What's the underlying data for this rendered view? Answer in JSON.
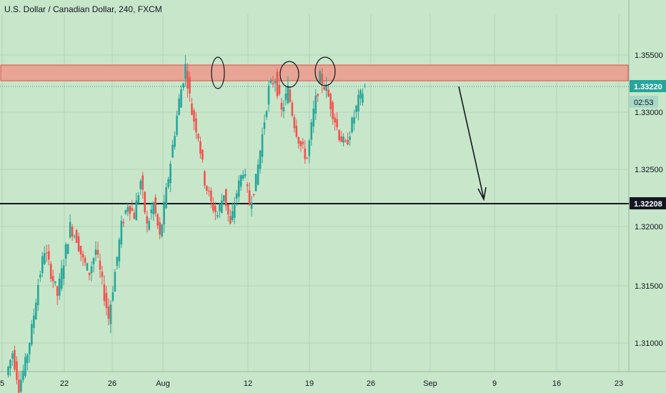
{
  "chart_title": "U.S. Dollar / Canadian Dollar, 240, FXCM",
  "colors": {
    "background": "#c8e6c9",
    "grid": "#b3d4b6",
    "up": "#26a69a",
    "down": "#ef5350",
    "zone_fill": "#e8a494",
    "zone_border": "#d9534f",
    "support_line": "#131722",
    "last_price_tag": "#26a69a",
    "text": "#131722"
  },
  "chart_data": {
    "type": "candlestick",
    "title": "U.S. Dollar / Canadian Dollar, 240, FXCM",
    "y_axis_ticks": [
      "1.35500",
      "1.33000",
      "1.32500",
      "1.32000",
      "1.31500",
      "1.31000"
    ],
    "x_axis_ticks": [
      "5",
      "22",
      "26",
      "Aug",
      "12",
      "19",
      "26",
      "Sep",
      "9",
      "16",
      "23"
    ],
    "grid": true,
    "last_price_label": "1.33220",
    "countdown_label": "02:53",
    "support_label": "1.32208",
    "resistance_zone": {
      "low": 1.3322,
      "high": 1.3342
    },
    "support_level": 1.32208,
    "annotations": [
      "three circles marking highs at the resistance zone",
      "arrow pointing down toward the 1.32208 support line"
    ],
    "price_path": [
      1.307,
      1.309,
      1.306,
      1.308,
      1.311,
      1.315,
      1.318,
      1.316,
      1.314,
      1.317,
      1.32,
      1.319,
      1.317,
      1.316,
      1.318,
      1.315,
      1.312,
      1.316,
      1.32,
      1.322,
      1.321,
      1.324,
      1.32,
      1.322,
      1.319,
      1.323,
      1.327,
      1.331,
      1.334,
      1.33,
      1.328,
      1.324,
      1.322,
      1.321,
      1.323,
      1.32,
      1.323,
      1.325,
      1.322,
      1.324,
      1.328,
      1.332,
      1.333,
      1.33,
      1.332,
      1.329,
      1.327,
      1.326,
      1.33,
      1.333,
      1.332,
      1.33,
      1.328,
      1.327,
      1.329,
      1.331,
      1.3322
    ]
  }
}
